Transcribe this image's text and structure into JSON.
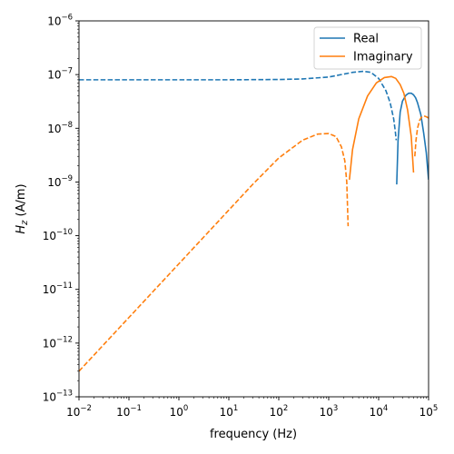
{
  "chart_data": {
    "type": "line",
    "xlabel": "frequency (Hz)",
    "ylabel_var": "H",
    "ylabel_sub": "z",
    "ylabel_unit": " (A/m)",
    "xscale": "log",
    "yscale": "log",
    "xlim": [
      0.01,
      100000
    ],
    "ylim": [
      1e-13,
      1e-06
    ],
    "grid": false,
    "legend_position": "top-right",
    "x_ticks": [
      {
        "value": 0.01,
        "base": "10",
        "exp": "−2"
      },
      {
        "value": 0.1,
        "base": "10",
        "exp": "−1"
      },
      {
        "value": 1,
        "base": "10",
        "exp": "0"
      },
      {
        "value": 10,
        "base": "10",
        "exp": "1"
      },
      {
        "value": 100,
        "base": "10",
        "exp": "2"
      },
      {
        "value": 1000,
        "base": "10",
        "exp": "3"
      },
      {
        "value": 10000,
        "base": "10",
        "exp": "4"
      },
      {
        "value": 100000,
        "base": "10",
        "exp": "5"
      }
    ],
    "y_ticks": [
      {
        "value": 1e-13,
        "base": "10",
        "exp": "−13"
      },
      {
        "value": 1e-12,
        "base": "10",
        "exp": "−12"
      },
      {
        "value": 1e-11,
        "base": "10",
        "exp": "−11"
      },
      {
        "value": 1e-10,
        "base": "10",
        "exp": "−10"
      },
      {
        "value": 1e-09,
        "base": "10",
        "exp": "−9"
      },
      {
        "value": 1e-08,
        "base": "10",
        "exp": "−8"
      },
      {
        "value": 1e-07,
        "base": "10",
        "exp": "−7"
      },
      {
        "value": 1e-06,
        "base": "10",
        "exp": "−6"
      }
    ],
    "series": [
      {
        "name": "Real",
        "color": "#1f77b4",
        "segments": [
          {
            "style": "dashed",
            "x": [
              0.01,
              0.1,
              1,
              10,
              100,
              300,
              1000,
              2000,
              3000,
              5000,
              7000,
              10000,
              14000,
              17000,
              20000,
              21500,
              22500
            ],
            "y": [
              8e-08,
              8e-08,
              8e-08,
              8e-08,
              8.1e-08,
              8.3e-08,
              9e-08,
              1.02e-07,
              1.1e-07,
              1.15e-07,
              1.1e-07,
              8.5e-08,
              5e-08,
              3e-08,
              1.5e-08,
              9e-09,
              6e-09
            ]
          },
          {
            "style": "solid",
            "x": [
              23000,
              24500,
              27000,
              30000,
              35000,
              40000,
              45000,
              50000,
              55000,
              60000,
              70000,
              80000,
              90000,
              100000
            ],
            "y": [
              9e-10,
              6e-09,
              2e-08,
              3.2e-08,
              4.1e-08,
              4.5e-08,
              4.5e-08,
              4.2e-08,
              3.7e-08,
              3e-08,
              1.8e-08,
              8e-09,
              3.5e-09,
              1.1e-09
            ]
          }
        ]
      },
      {
        "name": "Imaginary",
        "color": "#ff7f0e",
        "segments": [
          {
            "style": "dashed",
            "x": [
              0.01,
              0.1,
              1,
              10,
              30,
              100,
              300,
              600,
              1000,
              1400,
              1800,
              2100,
              2300,
              2450
            ],
            "y": [
              3e-13,
              3e-12,
              3e-11,
              3e-10,
              9e-10,
              2.8e-09,
              6e-09,
              7.8e-09,
              8e-09,
              7e-09,
              4.5e-09,
              2.5e-09,
              1e-09,
              1.5e-10
            ]
          },
          {
            "style": "solid",
            "x": [
              2600,
              3000,
              4000,
              6000,
              9000,
              13000,
              18000,
              22000,
              27000,
              32000,
              38000,
              45000,
              50000
            ],
            "y": [
              1.1e-09,
              4e-09,
              1.5e-08,
              4e-08,
              7e-08,
              8.8e-08,
              9.2e-08,
              8.5e-08,
              6.5e-08,
              4.5e-08,
              2.2e-08,
              7e-09,
              1.5e-09
            ]
          },
          {
            "style": "dashed",
            "x": [
              53000,
              56000,
              60000,
              66000,
              72000,
              80000,
              88000,
              95000,
              100000
            ],
            "y": [
              3e-09,
              6e-09,
              1e-08,
              1.4e-08,
              1.6e-08,
              1.7e-08,
              1.65e-08,
              1.6e-08,
              1.55e-08
            ]
          }
        ]
      }
    ]
  }
}
